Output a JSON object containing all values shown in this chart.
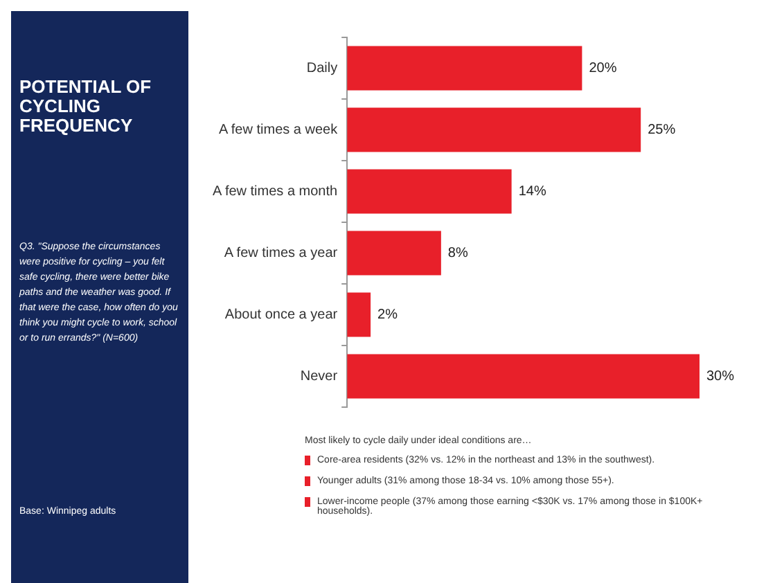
{
  "chart_data": {
    "type": "bar",
    "orientation": "horizontal",
    "title": "POTENTIAL OF CYCLING FREQUENCY",
    "categories": [
      "Daily",
      "A few times a week",
      "A few times a month",
      "A few times a year",
      "About once a year",
      "Never"
    ],
    "values": [
      20,
      25,
      14,
      8,
      2,
      30
    ],
    "color": "#e8202a",
    "data_labels": true,
    "value_labels": [
      "20%",
      "25%",
      "14%",
      "8%",
      "2%",
      "30%"
    ],
    "grid": false,
    "legend": false,
    "tick_labels": "y",
    "annotations": [
      "Q3. \"Suppose the circumstances were positive for cycling – you felt safe cycling, there were better bike paths and the weather was good. If that were the case, how often do you think you might cycle to work, school or to run errands?\" (N=600)",
      "Base: Winnipeg adults",
      "Most likely to cycle daily under ideal conditions are…",
      "Core-area residents (32% vs. 12% in the northeast and 13% in the southwest).",
      "Younger adults (31% among those 18-34 vs. 10% among those 55+).",
      "Lower-income people (37% among those earning <$30K vs. 17% among those in $100K+ households)."
    ]
  }
}
